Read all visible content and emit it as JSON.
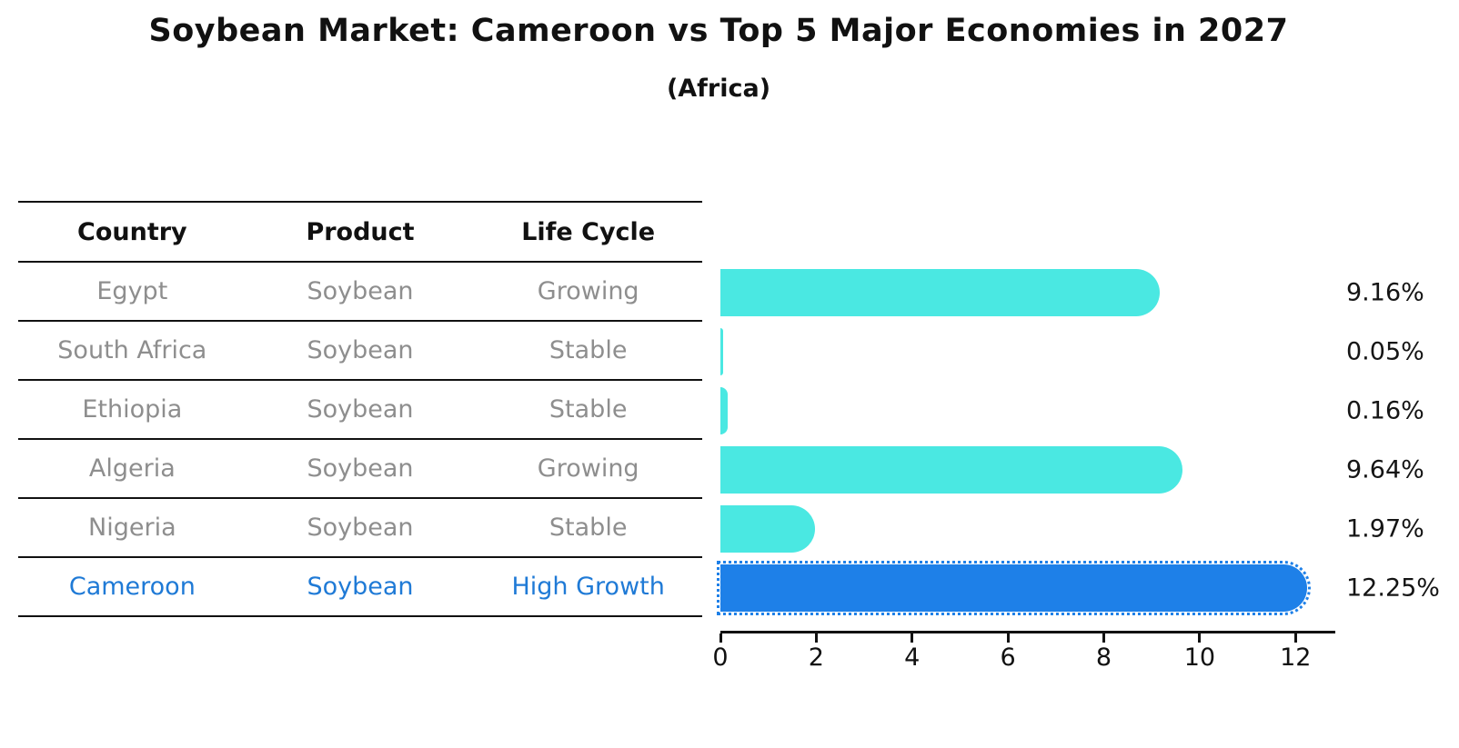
{
  "title": "Soybean Market: Cameroon vs Top 5 Major Economies in 2027",
  "subtitle": "(Africa)",
  "table": {
    "headers": [
      "Country",
      "Product",
      "Life Cycle"
    ],
    "rows": [
      {
        "country": "Egypt",
        "product": "Soybean",
        "life_cycle": "Growing",
        "highlight": false
      },
      {
        "country": "South Africa",
        "product": "Soybean",
        "life_cycle": "Stable",
        "highlight": false
      },
      {
        "country": "Ethiopia",
        "product": "Soybean",
        "life_cycle": "Stable",
        "highlight": false
      },
      {
        "country": "Algeria",
        "product": "Soybean",
        "life_cycle": "Growing",
        "highlight": false
      },
      {
        "country": "Nigeria",
        "product": "Soybean",
        "life_cycle": "Stable",
        "highlight": false
      },
      {
        "country": "Cameroon",
        "product": "Soybean",
        "life_cycle": "High Growth",
        "highlight": true
      }
    ]
  },
  "chart_data": {
    "type": "bar",
    "orientation": "horizontal",
    "title": "Soybean Market: Cameroon vs Top 5 Major Economies in 2027",
    "subtitle": "(Africa)",
    "categories": [
      "Egypt",
      "South Africa",
      "Ethiopia",
      "Algeria",
      "Nigeria",
      "Cameroon"
    ],
    "values": [
      9.16,
      0.05,
      0.16,
      9.64,
      1.97,
      12.25
    ],
    "value_labels": [
      "9.16%",
      "0.05%",
      "0.16%",
      "9.64%",
      "1.97%",
      "12.25%"
    ],
    "highlight_index": 5,
    "x_ticks": [
      0,
      2,
      4,
      6,
      8,
      10,
      12
    ],
    "xlim": [
      0,
      12.83
    ],
    "grid": false,
    "legend": false,
    "colors": {
      "bar_default": "#4ae8e2",
      "bar_highlight": "#1e80e8",
      "highlight_text": "#1f7ad6",
      "table_text": "#8e8e8e",
      "axis_text": "#111111"
    }
  }
}
